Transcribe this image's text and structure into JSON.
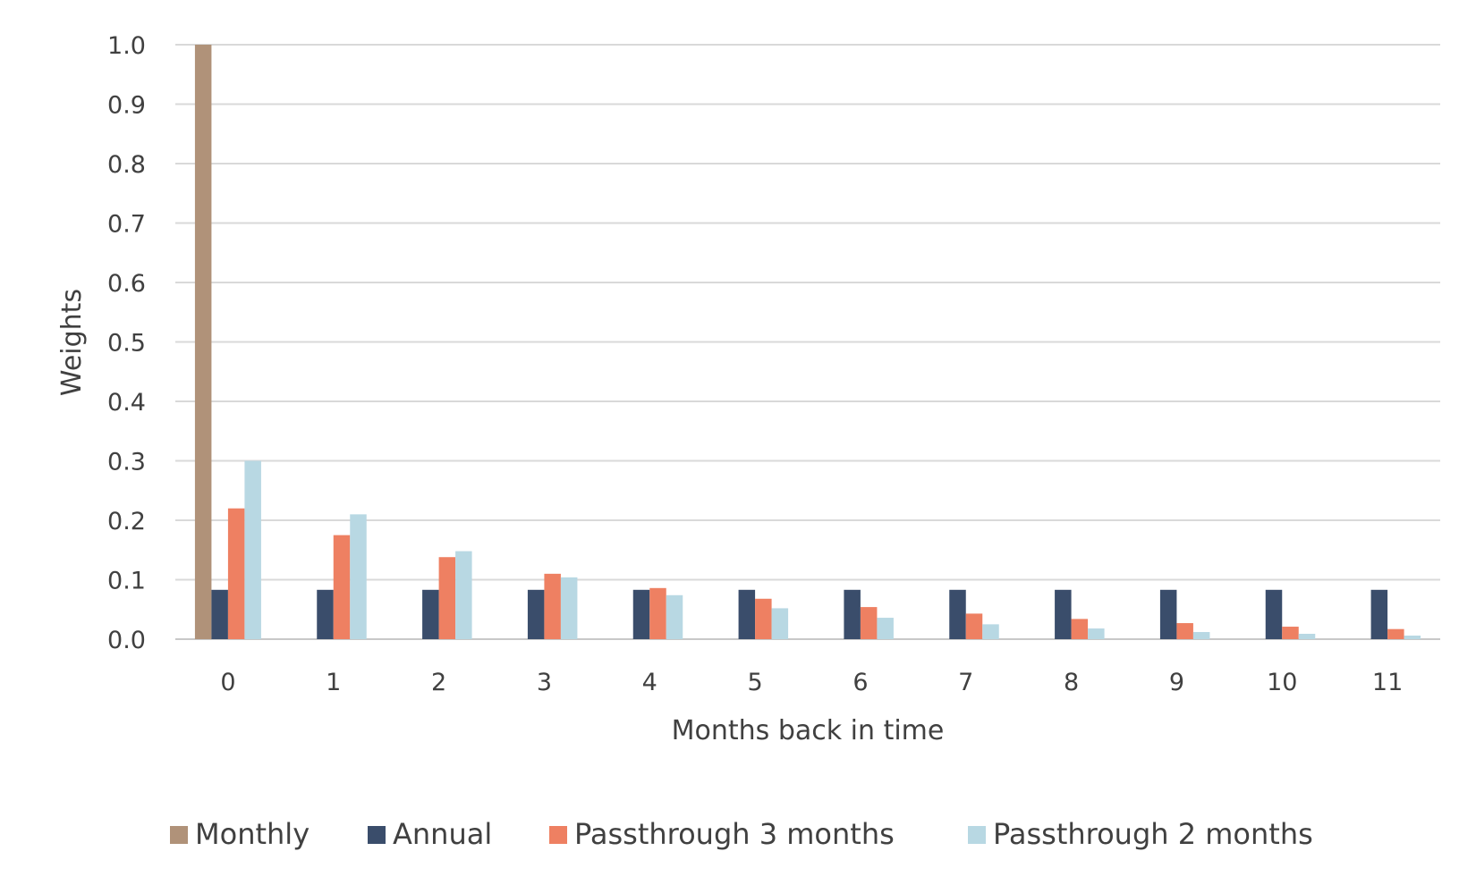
{
  "chart_data": {
    "type": "bar",
    "title": "",
    "xlabel": "Months back in time",
    "ylabel": "Weights",
    "ylim": [
      0,
      1
    ],
    "yticks": [
      "0.0",
      "0.1",
      "0.2",
      "0.3",
      "0.4",
      "0.5",
      "0.6",
      "0.7",
      "0.8",
      "0.9",
      "1.0"
    ],
    "categories": [
      "0",
      "1",
      "2",
      "3",
      "4",
      "5",
      "6",
      "7",
      "8",
      "9",
      "10",
      "11"
    ],
    "grid": true,
    "legend_position": "bottom",
    "series": [
      {
        "name": "Monthly",
        "color": "#b09279",
        "values": [
          1.0,
          0,
          0,
          0,
          0,
          0,
          0,
          0,
          0,
          0,
          0,
          0
        ]
      },
      {
        "name": "Annual",
        "color": "#3a4d6b",
        "values": [
          0.083,
          0.083,
          0.083,
          0.083,
          0.083,
          0.083,
          0.083,
          0.083,
          0.083,
          0.083,
          0.083,
          0.083
        ]
      },
      {
        "name": "Passthrough 3 months",
        "color": "#ee8062",
        "values": [
          0.22,
          0.175,
          0.138,
          0.11,
          0.086,
          0.068,
          0.054,
          0.043,
          0.034,
          0.027,
          0.021,
          0.017
        ]
      },
      {
        "name": "Passthrough 2 months",
        "color": "#b8d8e3",
        "values": [
          0.3,
          0.21,
          0.148,
          0.104,
          0.074,
          0.052,
          0.036,
          0.025,
          0.018,
          0.012,
          0.009,
          0.006
        ]
      }
    ]
  }
}
